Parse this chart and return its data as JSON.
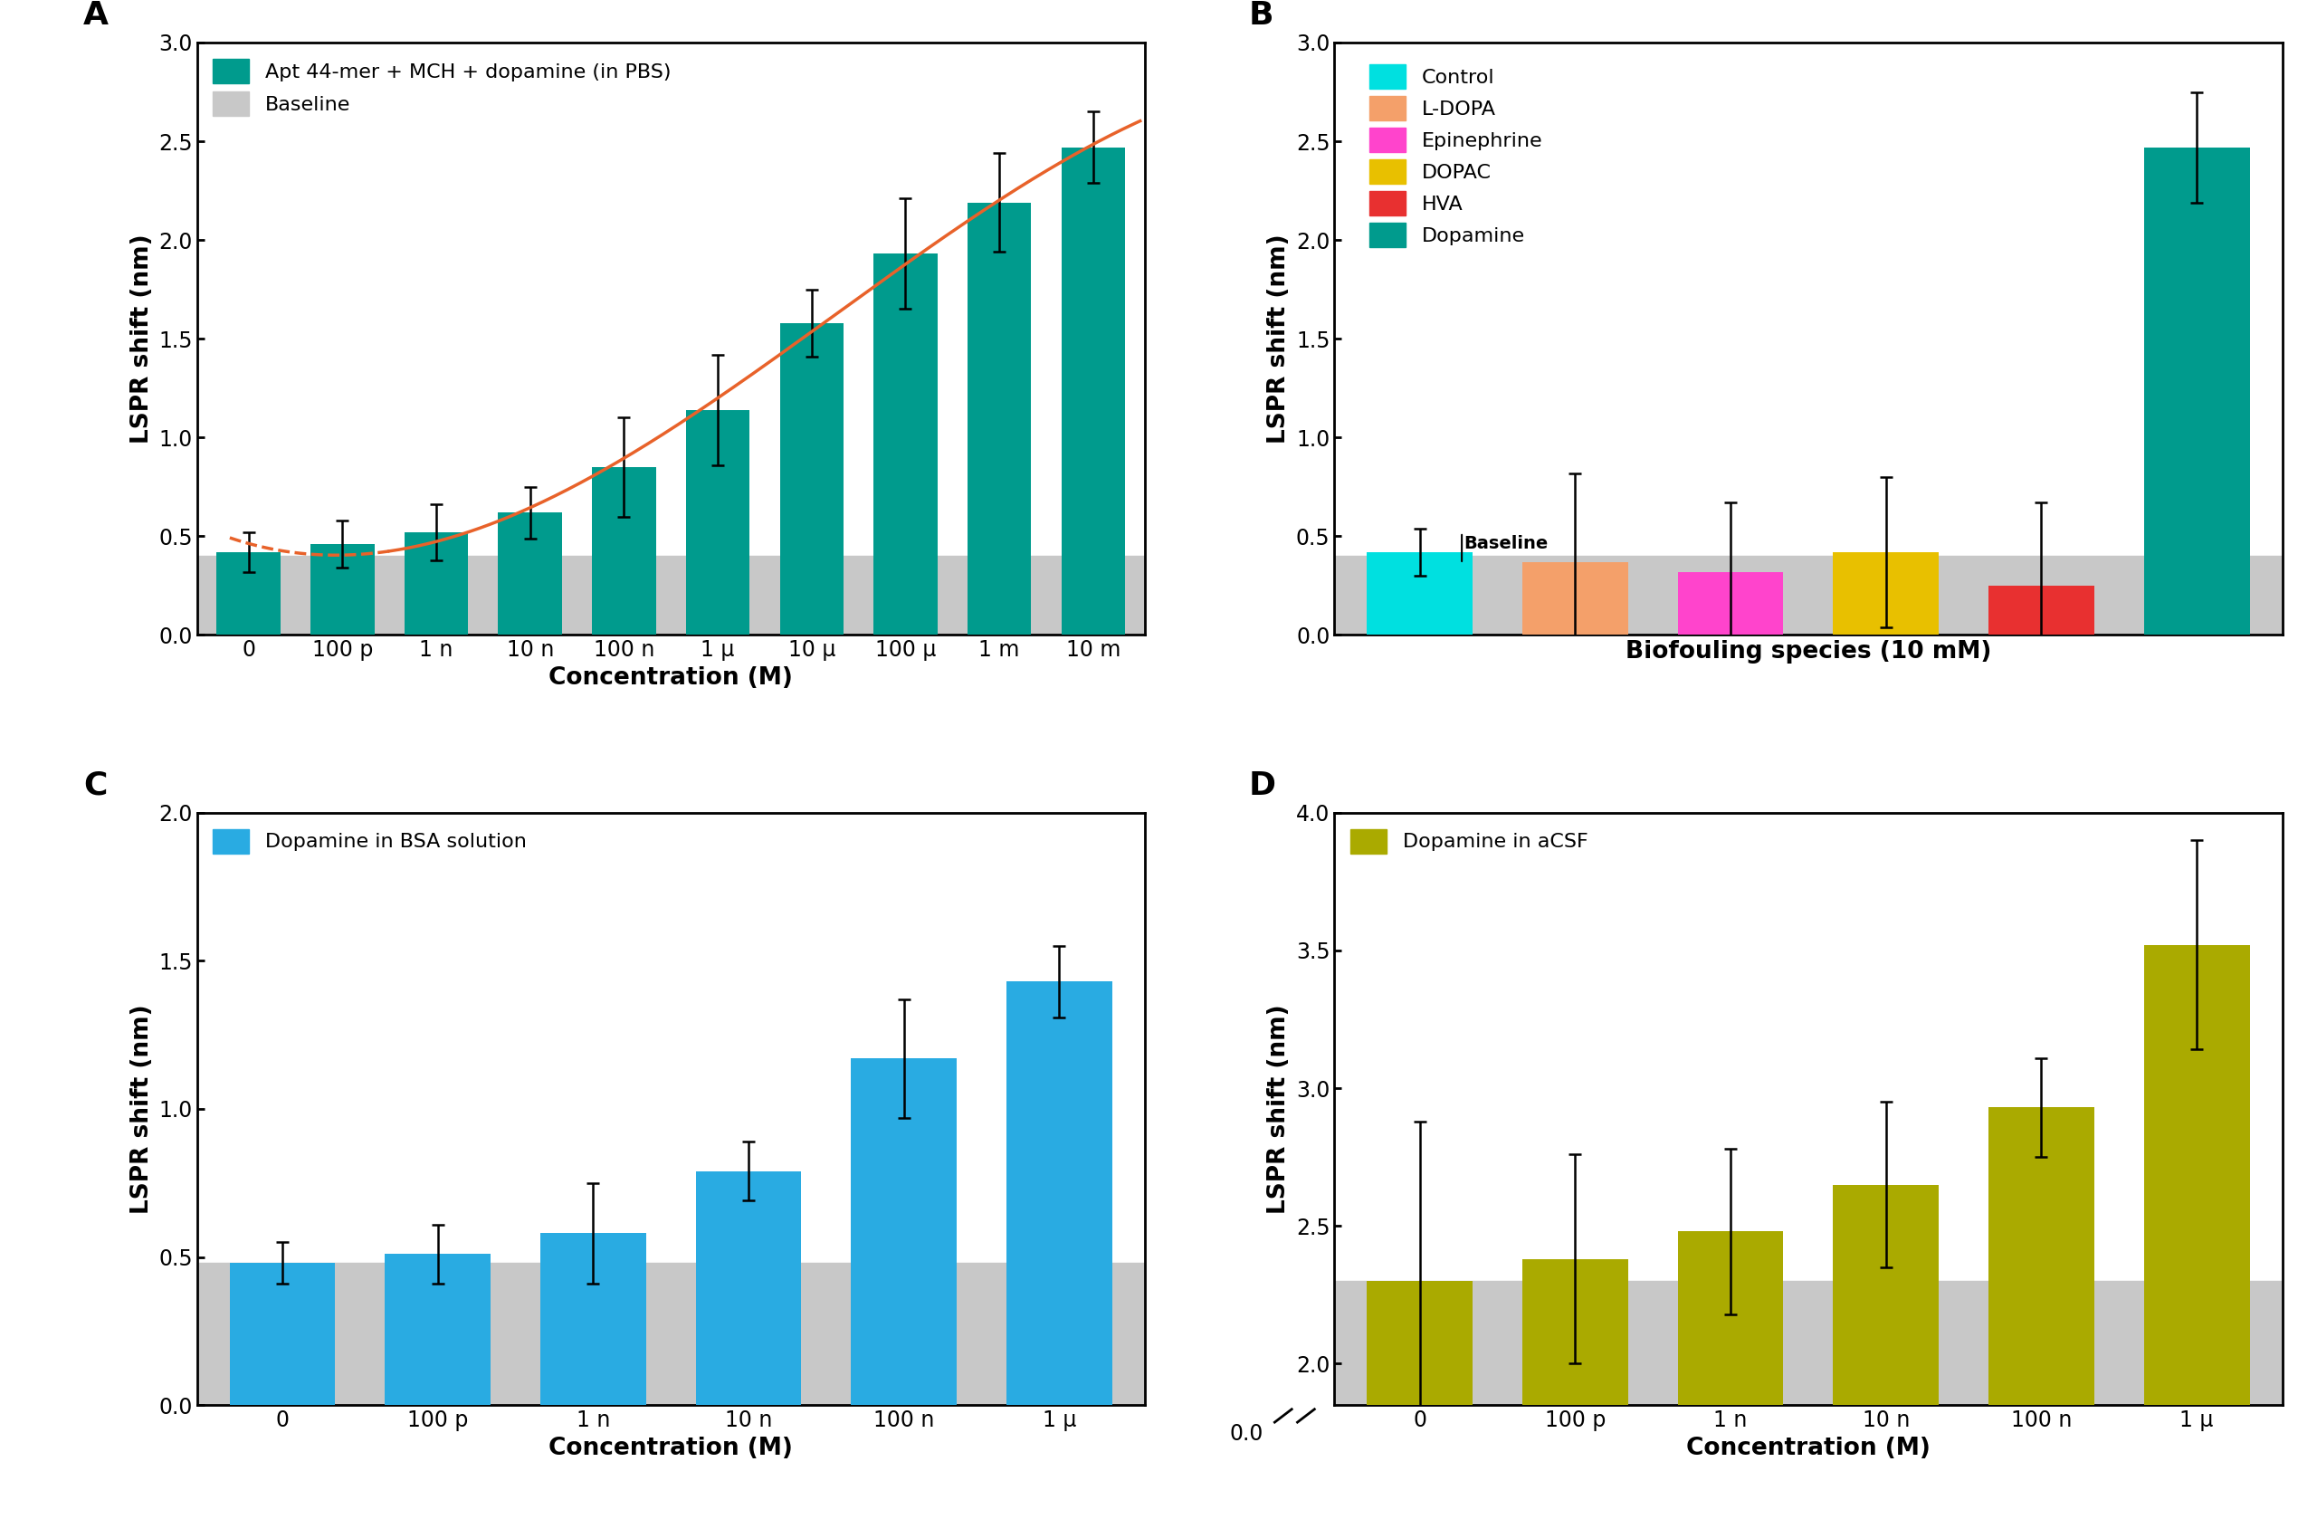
{
  "panel_A": {
    "categories": [
      "0",
      "100 p",
      "1 n",
      "10 n",
      "100 n",
      "1 μ",
      "10 μ",
      "100 μ",
      "1 m",
      "10 m"
    ],
    "values": [
      0.42,
      0.46,
      0.52,
      0.62,
      0.85,
      1.14,
      1.58,
      1.93,
      2.19,
      2.47
    ],
    "errors": [
      0.1,
      0.12,
      0.14,
      0.13,
      0.25,
      0.28,
      0.17,
      0.28,
      0.25,
      0.18
    ],
    "bar_color": "#009B8D",
    "baseline": 0.4,
    "baseline_color": "#C8C8C8",
    "ylabel": "LSPR shift (nm)",
    "xlabel": "Concentration (M)",
    "ylim": [
      0.0,
      3.0
    ],
    "yticks": [
      0.0,
      0.5,
      1.0,
      1.5,
      2.0,
      2.5,
      3.0
    ],
    "title": "A",
    "legend_bar_label": "Apt 44-mer + MCH + dopamine (in PBS)",
    "legend_baseline_label": "Baseline",
    "curve_color": "#E8622A"
  },
  "panel_B": {
    "categories": [
      "Control",
      "L-DOPA",
      "Epinephrine",
      "DOPAC",
      "HVA",
      "Dopamine"
    ],
    "values": [
      0.42,
      0.37,
      0.32,
      0.42,
      0.25,
      2.47
    ],
    "errors": [
      0.12,
      0.45,
      0.35,
      0.38,
      0.42,
      0.28
    ],
    "bar_colors": [
      "#00E0E0",
      "#F4A06A",
      "#FF44CC",
      "#E8C000",
      "#E83030",
      "#009B8D"
    ],
    "baseline": 0.4,
    "baseline_color": "#C8C8C8",
    "ylabel": "LSPR shift (nm)",
    "xlabel": "Biofouling species (10 mM)",
    "ylim": [
      0.0,
      3.0
    ],
    "yticks": [
      0.0,
      0.5,
      1.0,
      1.5,
      2.0,
      2.5,
      3.0
    ],
    "title": "B",
    "legend_labels": [
      "Control",
      "L-DOPA",
      "Epinephrine",
      "DOPAC",
      "HVA",
      "Dopamine"
    ],
    "legend_colors": [
      "#00E0E0",
      "#F4A06A",
      "#FF44CC",
      "#E8C000",
      "#E83030",
      "#009B8D"
    ]
  },
  "panel_C": {
    "categories": [
      "0",
      "100 p",
      "1 n",
      "10 n",
      "100 n",
      "1 μ"
    ],
    "values": [
      0.48,
      0.51,
      0.58,
      0.79,
      1.17,
      1.43
    ],
    "errors": [
      0.07,
      0.1,
      0.17,
      0.1,
      0.2,
      0.12
    ],
    "bar_color": "#29ABE2",
    "baseline": 0.48,
    "baseline_color": "#C8C8C8",
    "ylabel": "LSPR shift (nm)",
    "xlabel": "Concentration (M)",
    "ylim": [
      0.0,
      2.0
    ],
    "yticks": [
      0.0,
      0.5,
      1.0,
      1.5,
      2.0
    ],
    "title": "C",
    "legend_label": "Dopamine in BSA solution"
  },
  "panel_D": {
    "categories": [
      "0",
      "100 p",
      "1 n",
      "10 n",
      "100 n",
      "1 μ"
    ],
    "values": [
      2.3,
      2.38,
      2.48,
      2.65,
      2.93,
      3.52
    ],
    "errors": [
      0.58,
      0.38,
      0.3,
      0.3,
      0.18,
      0.38
    ],
    "bar_color": "#AAAA00",
    "baseline": 2.3,
    "baseline_color": "#C8C8C8",
    "ylabel": "LSPR shift (nm)",
    "xlabel": "Concentration (M)",
    "ylim_display": [
      1.85,
      4.0
    ],
    "yticks": [
      2.0,
      2.5,
      3.0,
      3.5,
      4.0
    ],
    "yticklabels": [
      "2.0",
      "2.5",
      "3.0",
      "3.5",
      "4.0"
    ],
    "title": "D",
    "legend_label": "Dopamine in aCSF"
  }
}
